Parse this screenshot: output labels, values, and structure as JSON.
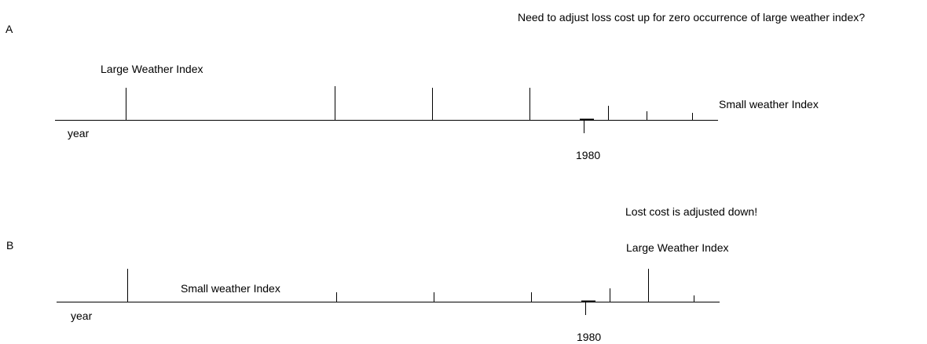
{
  "panels": [
    {
      "id": "A",
      "label": "A",
      "question": "Need to adjust loss cost up for zero occurrence of large weather index?",
      "large_label": "Large Weather Index",
      "small_label": "Small weather Index",
      "axis_label": "year",
      "year_label": "1980"
    },
    {
      "id": "B",
      "label": "B",
      "note": "Lost cost is adjusted down!",
      "large_label": "Large Weather Index",
      "small_label": "Small weather Index",
      "axis_label": "year",
      "year_label": "1980"
    }
  ]
}
